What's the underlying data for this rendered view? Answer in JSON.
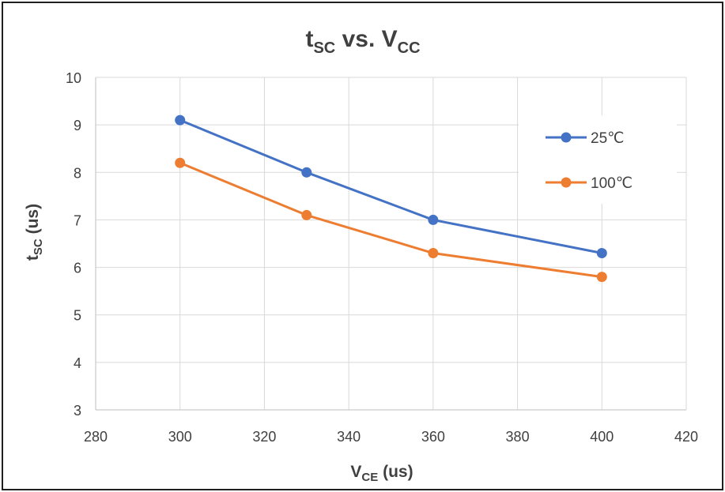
{
  "chart_data": {
    "type": "scatter",
    "title": {
      "main": "t",
      "sub": "SC",
      "middle": " vs. V",
      "sub2": "CC"
    },
    "xlabel": {
      "main": "V",
      "sub": "CE",
      "suffix": " (us)"
    },
    "ylabel": {
      "main": "t",
      "sub": "SC",
      "suffix": " (us)"
    },
    "xlim": [
      280,
      420
    ],
    "ylim": [
      3,
      10
    ],
    "xticks": [
      280,
      300,
      320,
      340,
      360,
      380,
      400,
      420
    ],
    "yticks": [
      3,
      4,
      5,
      6,
      7,
      8,
      9,
      10
    ],
    "grid": true,
    "legend_position": "right",
    "series": [
      {
        "name": "25℃",
        "color": "#4472C4",
        "x": [
          300,
          330,
          360,
          400
        ],
        "y": [
          9.1,
          8.0,
          7.0,
          6.3
        ]
      },
      {
        "name": "100℃",
        "color": "#ED7D31",
        "x": [
          300,
          330,
          360,
          400
        ],
        "y": [
          8.2,
          7.1,
          6.3,
          5.8
        ]
      }
    ]
  }
}
